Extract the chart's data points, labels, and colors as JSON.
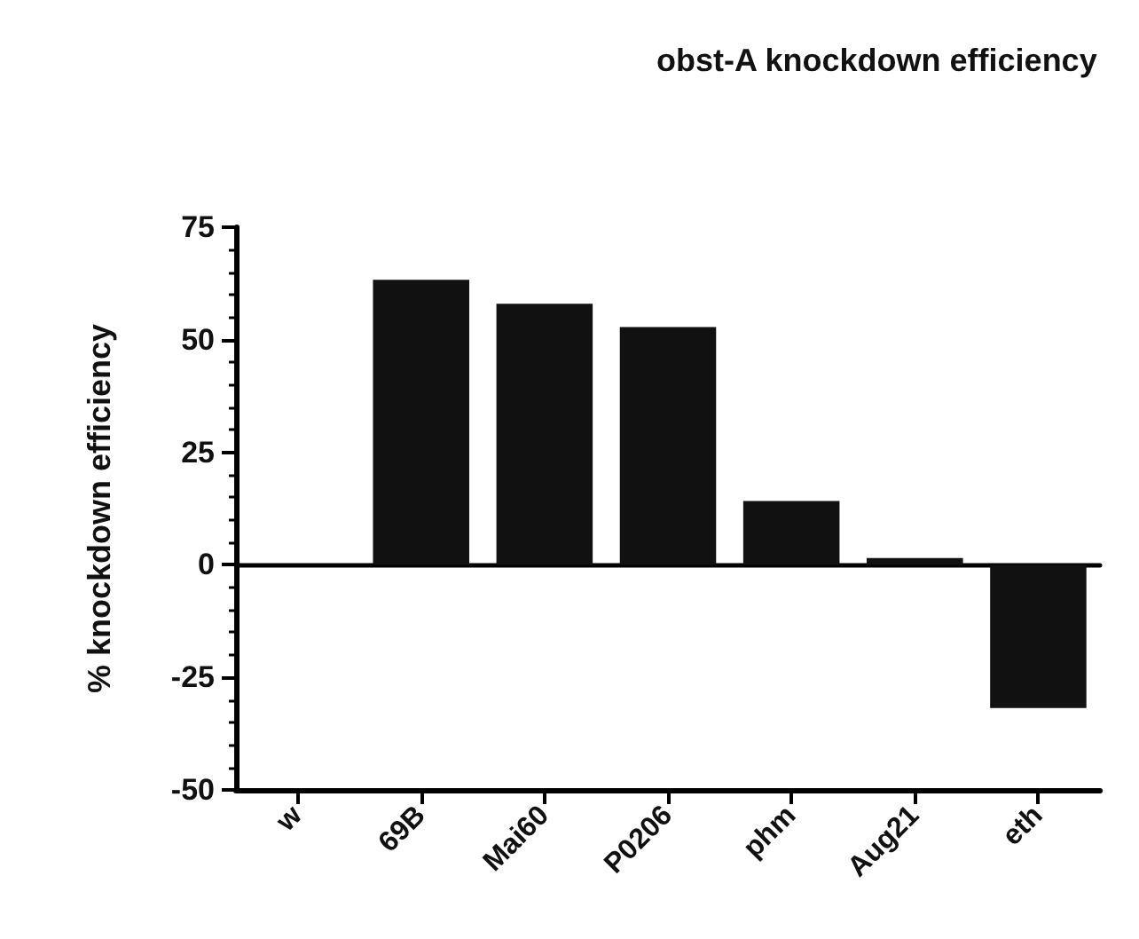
{
  "chart_data": {
    "type": "bar",
    "title": "obst-A knockdown efficiency",
    "ylabel": "% knockdown efficiency",
    "categories": [
      "w",
      "69B",
      "Mai60",
      "P0206",
      "phm",
      "Aug21",
      "eth"
    ],
    "values": [
      0,
      63.3,
      58,
      52.8,
      14.2,
      1.5,
      -31.8
    ],
    "color": "#111111",
    "ylim": [
      -50,
      75
    ],
    "yticks": [
      -50,
      -25,
      0,
      25,
      50,
      75
    ]
  }
}
